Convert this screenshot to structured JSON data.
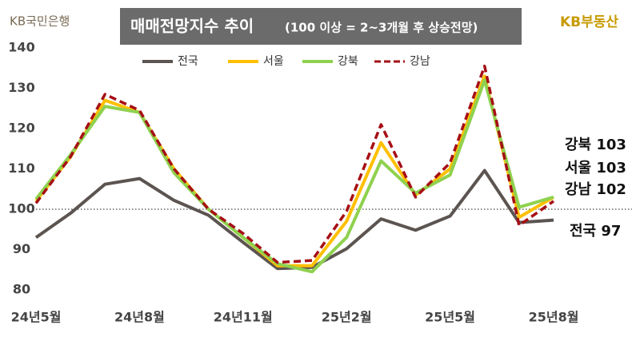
{
  "chart_data": {
    "type": "line",
    "title": "매매전망지수 추이",
    "subtitle": "(100 이상 = 2~3개월 후 상승전망)",
    "brand_left": "KB국민은행",
    "brand_right": "KB부동산",
    "categories": [
      "24년5월",
      null,
      null,
      "24년8월",
      null,
      null,
      "24년11월",
      null,
      null,
      "25년2월",
      null,
      null,
      "25년5월",
      null,
      null,
      "25년8월"
    ],
    "series": [
      {
        "name": "전국",
        "color": "#5b5450",
        "dash": false,
        "values": [
          93,
          99,
          106.2,
          107.6,
          102.2,
          98.5,
          91.8,
          85.3,
          85.6,
          90.2,
          97.6,
          94.8,
          98.3,
          109.6,
          96.7,
          97.3
        ]
      },
      {
        "name": "서울",
        "color": "#ffc000",
        "dash": false,
        "values": [
          102,
          113,
          127,
          124,
          110,
          100,
          93,
          86,
          86,
          97,
          116.5,
          103.5,
          110,
          133,
          98,
          103
        ]
      },
      {
        "name": "강북",
        "color": "#8fd14f",
        "dash": false,
        "values": [
          102.5,
          113.5,
          125.5,
          124,
          109,
          100,
          93,
          86.5,
          84.5,
          93,
          112,
          104,
          108.5,
          132,
          100.5,
          103
        ]
      },
      {
        "name": "강남",
        "color": "#a50f15",
        "dash": true,
        "values": [
          101.5,
          113,
          128.5,
          124.5,
          110,
          100,
          94,
          86.8,
          87.3,
          99.5,
          121,
          103,
          111.5,
          135.5,
          96,
          102
        ]
      }
    ],
    "annotations": [
      "강북 103",
      "서울 103",
      "강남 102",
      "전국 97"
    ],
    "reference_line": 100,
    "ylim": [
      80,
      140
    ],
    "yticks": [
      80,
      90,
      100,
      110,
      120,
      130,
      140
    ]
  }
}
